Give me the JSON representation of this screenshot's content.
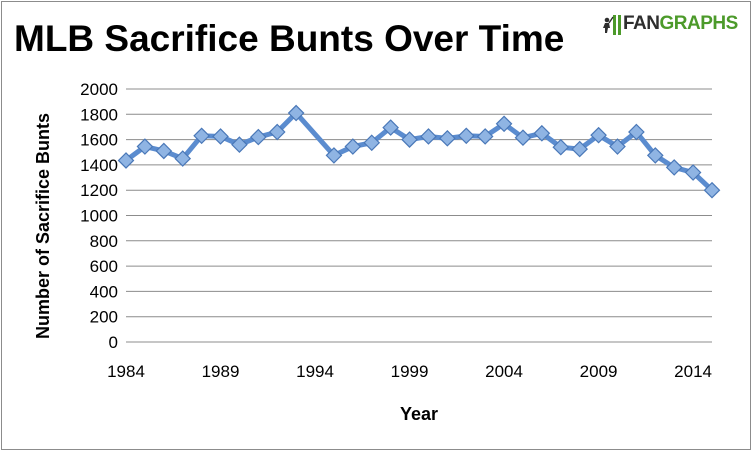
{
  "colors": {
    "series_line": "#5b8ccf",
    "marker_fill": "#8fb4e3",
    "marker_stroke": "#4a78b8",
    "grid": "#8c8c8c",
    "brand_green": "#4c9a2a"
  },
  "logo": {
    "part1": "FAN",
    "part2": "GRAPHS",
    "icon": "fangraphs-batter-icon"
  },
  "chart_data": {
    "type": "line",
    "title": "MLB Sacrifice Bunts Over Time",
    "xlabel": "Year",
    "ylabel": "Number of Sacrifice Bunts",
    "xlim": [
      1984,
      2015
    ],
    "ylim": [
      0,
      2000
    ],
    "x_ticks": [
      1984,
      1989,
      1994,
      1999,
      2004,
      2009,
      2014
    ],
    "y_ticks": [
      0,
      200,
      400,
      600,
      800,
      1000,
      1200,
      1400,
      1600,
      1800,
      2000
    ],
    "grid": true,
    "legend": "none",
    "x": [
      1984,
      1985,
      1986,
      1987,
      1988,
      1989,
      1990,
      1991,
      1992,
      1993,
      1995,
      1996,
      1997,
      1998,
      1999,
      2000,
      2001,
      2002,
      2003,
      2004,
      2005,
      2006,
      2007,
      2008,
      2009,
      2010,
      2011,
      2012,
      2013,
      2014,
      2015
    ],
    "values": [
      1435,
      1545,
      1510,
      1450,
      1630,
      1625,
      1560,
      1620,
      1660,
      1810,
      1475,
      1545,
      1575,
      1695,
      1600,
      1625,
      1610,
      1630,
      1625,
      1725,
      1615,
      1650,
      1540,
      1525,
      1635,
      1545,
      1660,
      1475,
      1380,
      1340,
      1200
    ]
  }
}
